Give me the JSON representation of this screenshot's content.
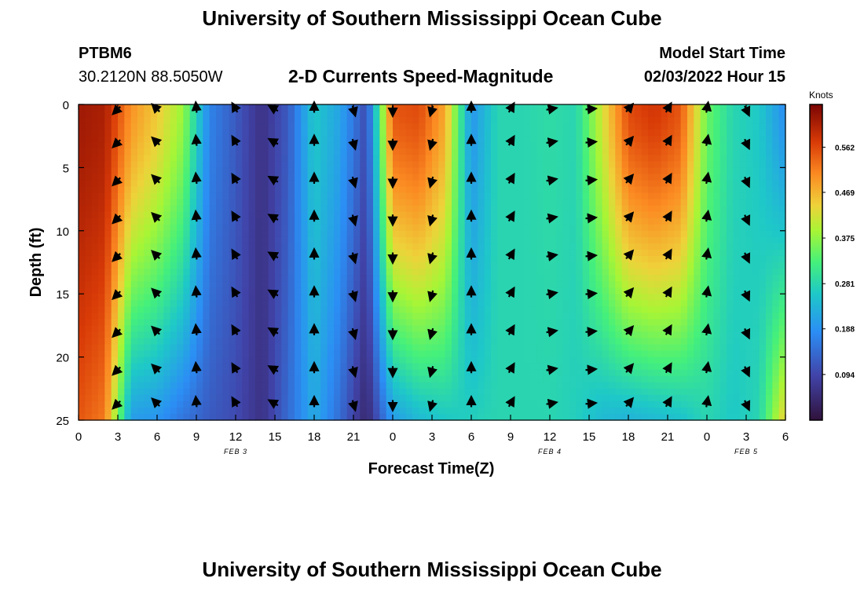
{
  "title": "University of Southern Mississippi Ocean Cube",
  "footer_title": "University of Southern Mississippi Ocean Cube",
  "station": {
    "id": "PTBM6",
    "coords": "30.2120N  88.5050W"
  },
  "model": {
    "label": "Model Start Time",
    "time": "02/03/2022 Hour 15"
  },
  "chart_data": {
    "type": "heatmap",
    "title": "2-D Currents Speed-Magnitude",
    "xlabel": "Forecast Time(Z)",
    "ylabel": "Depth (ft)",
    "x_tick_labels": [
      "0",
      "3",
      "6",
      "9",
      "12",
      "15",
      "18",
      "21",
      "0",
      "3",
      "6",
      "9",
      "12",
      "15",
      "18",
      "21",
      "0",
      "3",
      "6"
    ],
    "y_ticks": [
      0,
      5,
      10,
      15,
      20,
      25
    ],
    "ylim": [
      0,
      25
    ],
    "y_inverted": true,
    "x_hours_range": [
      0,
      54
    ],
    "date_labels": [
      {
        "text": "FEB 3",
        "hour": 12
      },
      {
        "text": "FEB 4",
        "hour": 36
      },
      {
        "text": "FEB 5",
        "hour": 51
      }
    ],
    "colorbar": {
      "label": "Knots",
      "min": 0.0,
      "max": 0.65,
      "ticks": [
        0.094,
        0.188,
        0.281,
        0.375,
        0.469,
        0.562
      ]
    },
    "depth_profile_hours": [
      0,
      2,
      4,
      6,
      8,
      10,
      12,
      14,
      16,
      18,
      20,
      22,
      24,
      26,
      28,
      30,
      32,
      34,
      36,
      38,
      40,
      42,
      44,
      46,
      48,
      50,
      52,
      54
    ],
    "speed_surface": [
      0.62,
      0.61,
      0.5,
      0.45,
      0.38,
      0.17,
      0.12,
      0.06,
      0.12,
      0.26,
      0.21,
      0.1,
      0.55,
      0.56,
      0.48,
      0.19,
      0.28,
      0.28,
      0.29,
      0.28,
      0.42,
      0.56,
      0.58,
      0.55,
      0.35,
      0.28,
      0.26,
      0.18
    ],
    "speed_bottom": [
      0.55,
      0.52,
      0.2,
      0.19,
      0.15,
      0.12,
      0.1,
      0.06,
      0.14,
      0.22,
      0.14,
      0.04,
      0.2,
      0.24,
      0.26,
      0.27,
      0.28,
      0.28,
      0.28,
      0.27,
      0.24,
      0.23,
      0.24,
      0.25,
      0.28,
      0.26,
      0.28,
      0.45
    ],
    "arrow_hours": [
      3,
      6,
      9,
      12,
      15,
      18,
      21,
      24,
      27,
      30,
      33,
      36,
      39,
      42,
      45,
      48,
      51
    ],
    "arrow_depths": [
      0,
      3,
      6,
      9,
      12,
      15,
      18,
      21,
      24
    ],
    "arrow_direction_deg": [
      225,
      315,
      355,
      330,
      300,
      0,
      165,
      180,
      195,
      0,
      30,
      80,
      85,
      40,
      30,
      10,
      155
    ]
  }
}
